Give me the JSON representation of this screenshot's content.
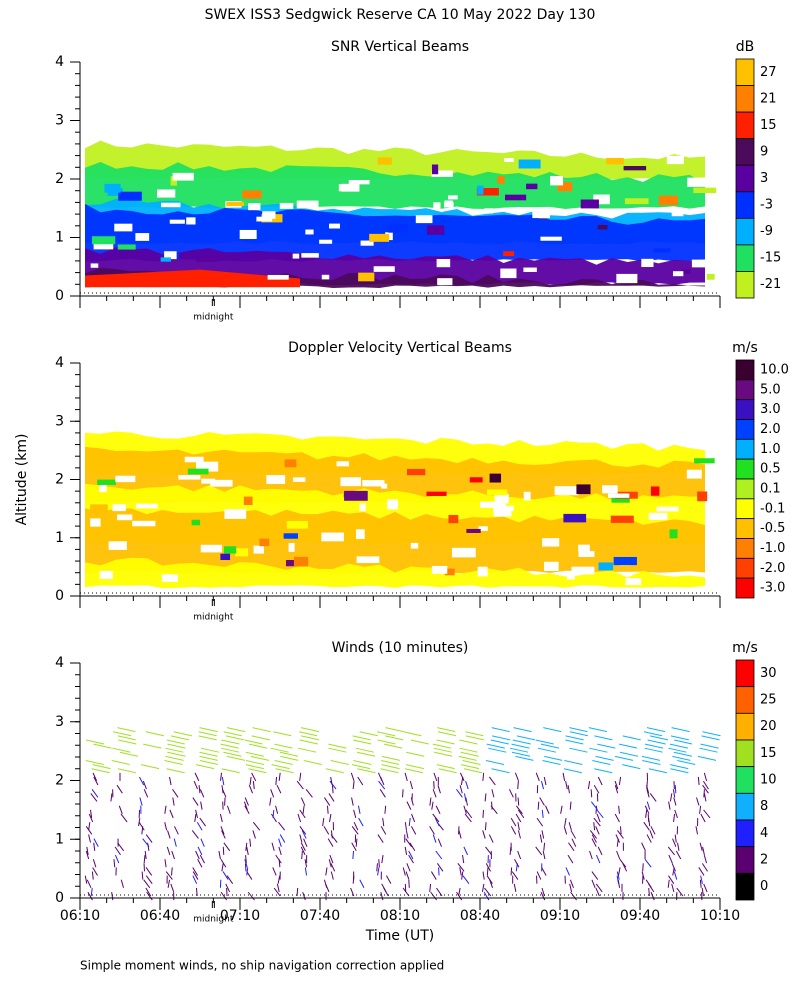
{
  "title": "SWEX ISS3 Sedgwick Reserve CA  10 May 2022 Day 130",
  "note": "Simple moment winds, no ship navigation correction applied",
  "chart_data": [
    {
      "type": "heatmap",
      "title": "SNR Vertical Beams",
      "ylim": [
        0,
        4
      ],
      "yticks": [
        0,
        1,
        2,
        3,
        4
      ],
      "xlim": [
        "06:10",
        "10:10"
      ],
      "annotation": {
        "text": "midnight",
        "x": "07:00"
      },
      "colorbar": {
        "unit": "dB",
        "levels": [
          27,
          21,
          15,
          9,
          3,
          -3,
          -9,
          -15,
          -21
        ],
        "colors": [
          "#ffc000",
          "#ff8000",
          "#ff2000",
          "#4b0a5a",
          "#5a00a0",
          "#0030ff",
          "#00b0ff",
          "#20e060",
          "#c0f020"
        ]
      }
    },
    {
      "type": "heatmap",
      "title": "Doppler Velocity Vertical Beams",
      "ylabel": "Altitude (km)",
      "ylim": [
        0,
        4
      ],
      "yticks": [
        0,
        1,
        2,
        3,
        4
      ],
      "xlim": [
        "06:10",
        "10:10"
      ],
      "annotation": {
        "text": "midnight",
        "x": "07:00"
      },
      "colorbar": {
        "unit": "m/s",
        "levels": [
          {
            "value": 10,
            "label": "10.0"
          },
          {
            "value": 5,
            "label": "5.0"
          },
          {
            "value": 3,
            "label": "3.0"
          },
          {
            "value": 2,
            "label": "2.0"
          },
          {
            "value": 1,
            "label": "1.0"
          },
          0.5,
          0.1,
          -0.1,
          -0.5,
          {
            "value": -1,
            "label": "-1.0"
          },
          {
            "value": -2,
            "label": "-2.0"
          },
          {
            "value": -3,
            "label": "-3.0"
          }
        ],
        "colors": [
          "#3a0030",
          "#6a0a80",
          "#3a10c0",
          "#0040ff",
          "#00b0ff",
          "#20e020",
          "#b0f020",
          "#ffff00",
          "#ffc000",
          "#ff8000",
          "#ff4000",
          "#ff0000"
        ]
      }
    },
    {
      "type": "wind-barbs",
      "title": "Winds (10 minutes)",
      "xlabel": "Time (UT)",
      "ylim": [
        0,
        4
      ],
      "yticks": [
        0,
        1,
        2,
        3,
        4
      ],
      "xlim": [
        "06:10",
        "10:10"
      ],
      "xticks": [
        "06:10",
        "06:40",
        "07:10",
        "07:40",
        "08:10",
        "08:40",
        "09:10",
        "09:40",
        "10:10"
      ],
      "annotation": {
        "text": "midnight",
        "x": "07:00"
      },
      "colorbar": {
        "unit": "m/s",
        "levels": [
          30,
          25,
          20,
          15,
          10,
          8,
          4,
          2,
          0
        ],
        "colors": [
          "#ff0000",
          "#ff6000",
          "#ffb000",
          "#a0e020",
          "#20e060",
          "#10b0ff",
          "#2020ff",
          "#5a0070",
          "#000000"
        ]
      }
    }
  ]
}
